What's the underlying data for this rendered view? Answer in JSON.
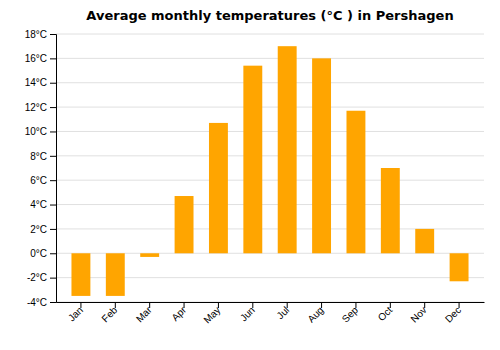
{
  "chart_data": {
    "type": "bar",
    "title": "Average monthly temperatures (°C ) in Pershagen",
    "categories": [
      "Jan",
      "Feb",
      "Mar",
      "Apr",
      "May",
      "Jun",
      "Jul",
      "Aug",
      "Sep",
      "Oct",
      "Nov",
      "Dec"
    ],
    "values": [
      -3.5,
      -3.5,
      -0.3,
      4.7,
      10.7,
      15.4,
      17.0,
      16.0,
      11.7,
      7.0,
      2.0,
      -2.3
    ],
    "color": "#FFA500",
    "ylim": [
      -4,
      18
    ],
    "yticks": [
      {
        "value": -4,
        "label": "-4°C"
      },
      {
        "value": -2,
        "label": "-2°C"
      },
      {
        "value": 0,
        "label": "0°C"
      },
      {
        "value": 2,
        "label": "2°C"
      },
      {
        "value": 4,
        "label": "4°C"
      },
      {
        "value": 6,
        "label": "6°C"
      },
      {
        "value": 8,
        "label": "8°C"
      },
      {
        "value": 10,
        "label": "10°C"
      },
      {
        "value": 12,
        "label": "12°C"
      },
      {
        "value": 14,
        "label": "14°C"
      },
      {
        "value": 16,
        "label": "16°C"
      },
      {
        "value": 18,
        "label": "18°C"
      }
    ],
    "grid": true
  }
}
